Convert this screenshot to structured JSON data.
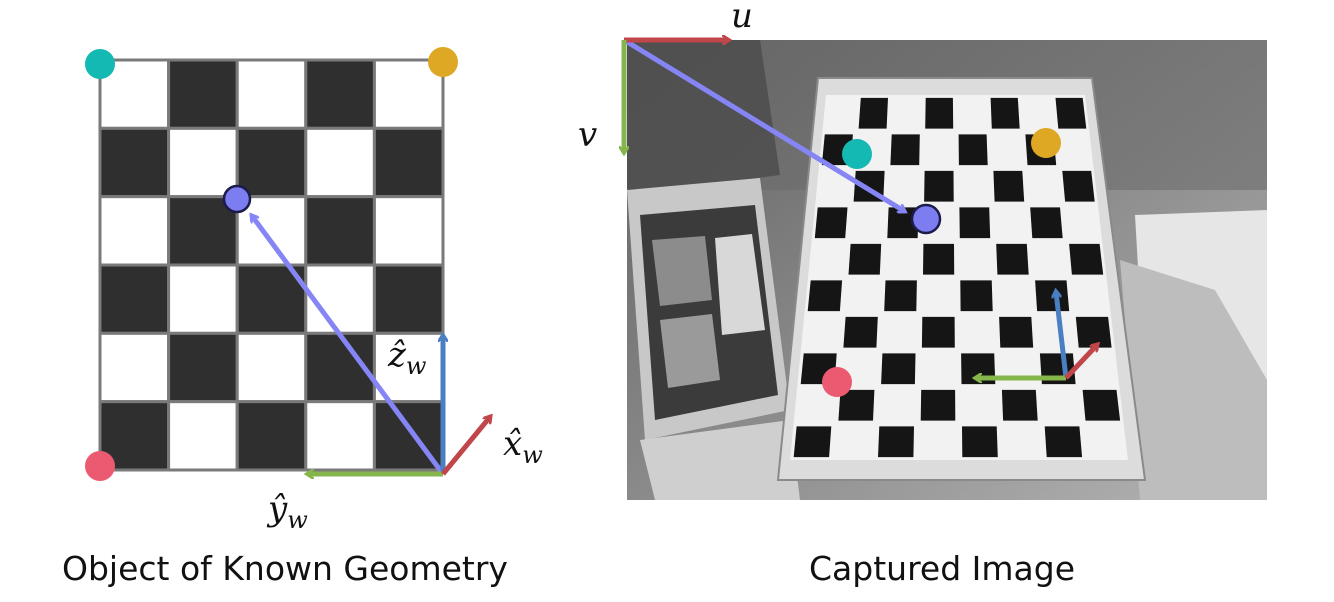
{
  "left_panel": {
    "caption": "Object of Known Geometry",
    "board": {
      "rows": 6,
      "cols": 5,
      "dark_color": "#2f2f2f",
      "light_color": "#ffffff",
      "grid_color": "#7a7a7a"
    },
    "axes": {
      "z_label": "ẑ",
      "y_label": "ŷ",
      "x_label": "x̂",
      "subscript": "w"
    }
  },
  "right_panel": {
    "caption": "Captured Image",
    "u_label": "u",
    "v_label": "v"
  },
  "colors": {
    "teal_marker": "#15b9b3",
    "gold_marker": "#dea824",
    "pink_marker": "#ec5a72",
    "purple_marker": "#7d7df2",
    "ray_arrow": "#8585f6",
    "z_axis": "#4a7fc1",
    "y_axis": "#86b54b",
    "x_axis": "#c0464a"
  }
}
